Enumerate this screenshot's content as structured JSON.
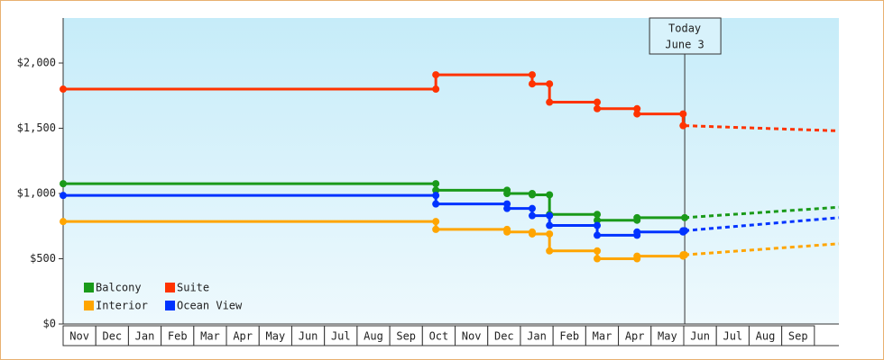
{
  "chart_data": {
    "type": "line",
    "x_categories": [
      "Nov",
      "Dec",
      "Jan",
      "Feb",
      "Mar",
      "Apr",
      "May",
      "Jun",
      "Jul",
      "Aug",
      "Sep",
      "Oct",
      "Nov",
      "Dec",
      "Jan",
      "Feb",
      "Mar",
      "Apr",
      "May",
      "Jun",
      "Jul",
      "Aug",
      "Sep"
    ],
    "xlim": [
      0,
      23.75
    ],
    "ylim": [
      0,
      2345
    ],
    "yticks": [
      {
        "value": 0,
        "label": "$0"
      },
      {
        "value": 500,
        "label": "$500"
      },
      {
        "value": 1000,
        "label": "$1,000"
      },
      {
        "value": 1500,
        "label": "$1,500"
      },
      {
        "value": 2000,
        "label": "$2,000"
      }
    ],
    "today": {
      "x": 19.03,
      "label": [
        "Today",
        "June 3"
      ]
    },
    "series": [
      {
        "name": "Balcony",
        "color": "#1a9a1a",
        "x": [
          0,
          11.41,
          11.41,
          13.59,
          13.59,
          14.36,
          14.36,
          14.89,
          14.89,
          16.35,
          16.35,
          17.57,
          17.57,
          19.03
        ],
        "values": [
          1075,
          1075,
          1025,
          1025,
          1000,
          1000,
          990,
          990,
          840,
          840,
          795,
          795,
          815,
          815
        ],
        "forecast": {
          "x": [
            19.03,
            23.75
          ],
          "values": [
            815,
            895
          ]
        }
      },
      {
        "name": "Suite",
        "color": "#ff3300",
        "x": [
          0,
          11.41,
          11.41,
          14.36,
          14.36,
          14.89,
          14.89,
          16.35,
          16.35,
          17.57,
          17.57,
          18.98,
          18.98
        ],
        "values": [
          1800,
          1800,
          1910,
          1910,
          1840,
          1840,
          1700,
          1700,
          1650,
          1650,
          1610,
          1610,
          1520
        ],
        "forecast": {
          "x": [
            19.03,
            23.75
          ],
          "values": [
            1520,
            1480
          ]
        }
      },
      {
        "name": "Interior",
        "color": "#ffa500",
        "x": [
          0,
          11.41,
          11.41,
          13.59,
          13.59,
          14.36,
          14.36,
          14.89,
          14.89,
          16.35,
          16.35,
          17.57,
          17.57,
          18.98,
          18.98,
          19.03
        ],
        "values": [
          785,
          785,
          725,
          725,
          705,
          705,
          690,
          690,
          560,
          560,
          500,
          500,
          520,
          520,
          530,
          530
        ],
        "forecast": {
          "x": [
            19.03,
            23.75
          ],
          "values": [
            530,
            615
          ]
        }
      },
      {
        "name": "Ocean View",
        "color": "#0033ff",
        "x": [
          0,
          11.41,
          11.41,
          13.59,
          13.59,
          14.36,
          14.36,
          14.89,
          14.89,
          16.35,
          16.35,
          17.57,
          17.57,
          18.98,
          18.98,
          19.03
        ],
        "values": [
          985,
          985,
          920,
          920,
          885,
          885,
          830,
          830,
          755,
          755,
          680,
          680,
          705,
          705,
          715,
          715
        ],
        "forecast": {
          "x": [
            19.03,
            23.75
          ],
          "values": [
            715,
            815
          ]
        }
      }
    ]
  }
}
